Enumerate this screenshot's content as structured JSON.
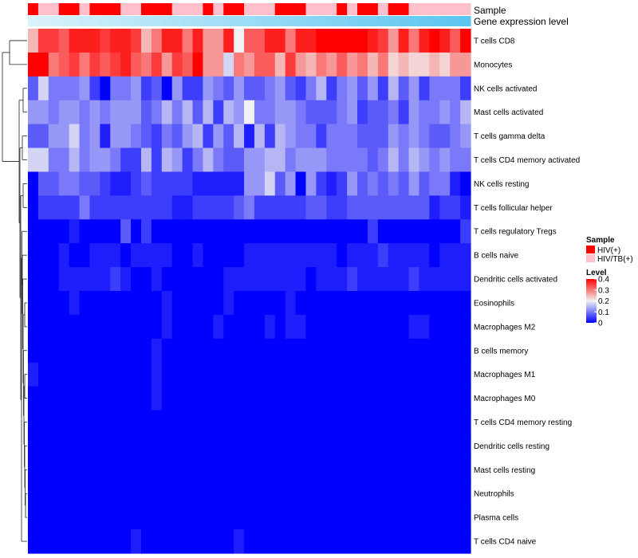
{
  "chart_data": {
    "type": "heatmap",
    "annotations": {
      "sample_label": "Sample",
      "gene_label": "Gene expression level",
      "gene_color_start": "#d9f2fc",
      "gene_color_end": "#5cc6f0"
    },
    "rows": [
      "T cells CD8",
      "Monocytes",
      "NK cells activated",
      "Mast cells activated",
      "T cells gamma delta",
      "T cells CD4 memory activated",
      "NK cells resting",
      "T cells follicular helper",
      "T cells regulatory  Tregs",
      "B cells naive",
      "Dendritic cells activated",
      "Eosinophils",
      "Macrophages M2",
      "B cells memory",
      "Macrophages M1",
      "Macrophages M0",
      "T cells CD4 memory resting",
      "Dendritic cells resting",
      "Mast cells resting",
      "Neutrophils",
      "Plasma cells",
      "T cells CD4 naive"
    ],
    "sample_groups": "0110010001100011101001110001110100100111111",
    "values": [
      "aeedfffeffeacffcfbbf8ddffcffgggggfebfcfgfdg",
      "ggcdecedefdcebedgbb7cbddaebacbdbcac9a99a9bb",
      "3744452044523052254353345324624535263524442",
      "5545545455534646362658445543334523342544546",
      "3355745155432435625361626544244433354543345",
      "7744645542262652464335566455544443464654544",
      "0334433211232222111115573505212534343534410",
      "0222242222222211222234222223322333333331221",
      "0000100003020000000000000000000002000000002",
      "0001001110111100100001111111110111211110111",
      "0001111121001000000111111110111211111211111",
      "0000100000000100000100000100000000000000000",
      "0000000000000100001000010110000000000110000",
      "0000000000001000000000000000000000000000000",
      "1000000000001000000000000000000000000000000",
      "0000000000001000000000000000000000000000000",
      "0000000000000000000000000000000000000000000",
      "0000000000000000000000000000000000000000000",
      "0000000000000000000000000000000000000000000",
      "0000000000000000000000000000000000000000000",
      "0000000000000000000000000000000000000000000",
      "0000000000100000000010000000000000000000000"
    ],
    "value_scale_step": 0.025,
    "color_scale": {
      "low": "#0000ff",
      "mid": "#f2f2f2",
      "high": "#ff0000",
      "mid_value": 0.2,
      "max_value": 0.4
    },
    "legend": {
      "sample_title": "Sample",
      "groups": [
        {
          "label": "HIV(+)",
          "color": "#ff0000"
        },
        {
          "label": "HIV/TB(+)",
          "color": "#ffc0cb"
        }
      ],
      "level_title": "Level",
      "level_ticks": [
        "0.4",
        "0.3",
        "0.2",
        "0.1",
        "0"
      ],
      "placement": "right"
    }
  }
}
